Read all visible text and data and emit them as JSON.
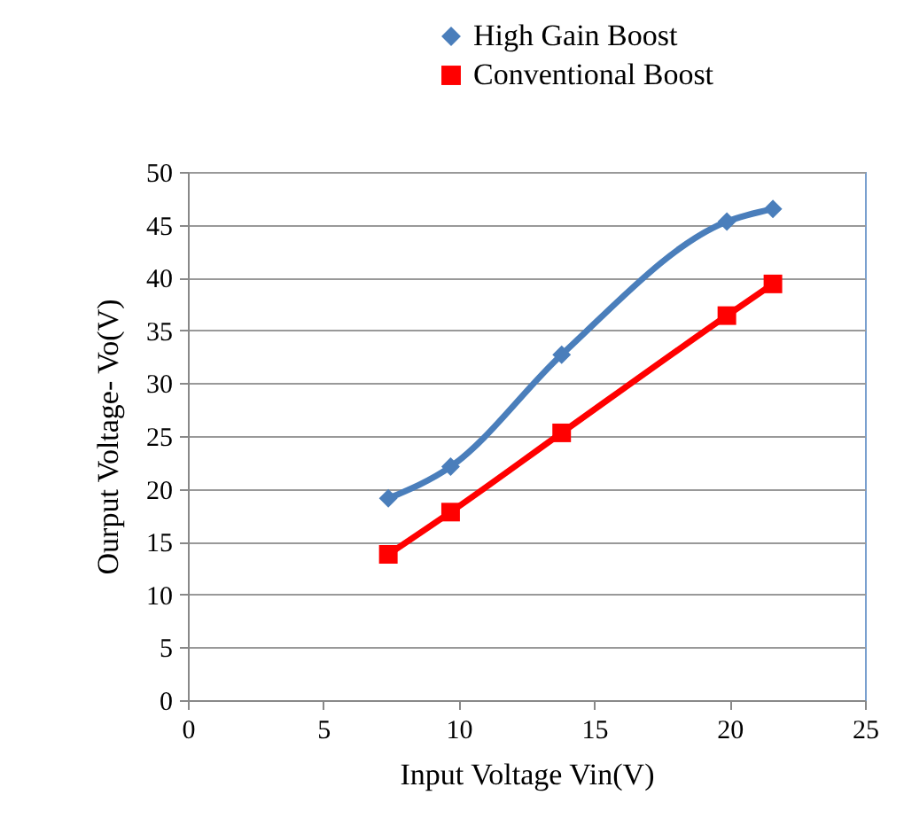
{
  "chart_data": {
    "type": "line",
    "xlabel": "Input Voltage  Vin(V)",
    "ylabel": "Ourput Voltage- Vo(V)",
    "x": [
      7.4,
      9.7,
      13.8,
      19.9,
      21.6
    ],
    "series": [
      {
        "name": "High Gain Boost",
        "color": "#4a7ebb",
        "marker": "diamond",
        "values": [
          19.1,
          22.1,
          32.7,
          45.3,
          46.5
        ]
      },
      {
        "name": "Conventional Boost",
        "color": "#ff0000",
        "marker": "square",
        "values": [
          13.8,
          17.8,
          25.3,
          36.4,
          39.4
        ]
      }
    ],
    "xlim": [
      0,
      25
    ],
    "xticks": [
      0,
      5,
      10,
      15,
      20,
      25
    ],
    "ylim": [
      0,
      50
    ],
    "yticks": [
      0,
      5,
      10,
      15,
      20,
      25,
      30,
      35,
      40,
      45,
      50
    ],
    "grid": "y",
    "legend": "top"
  }
}
